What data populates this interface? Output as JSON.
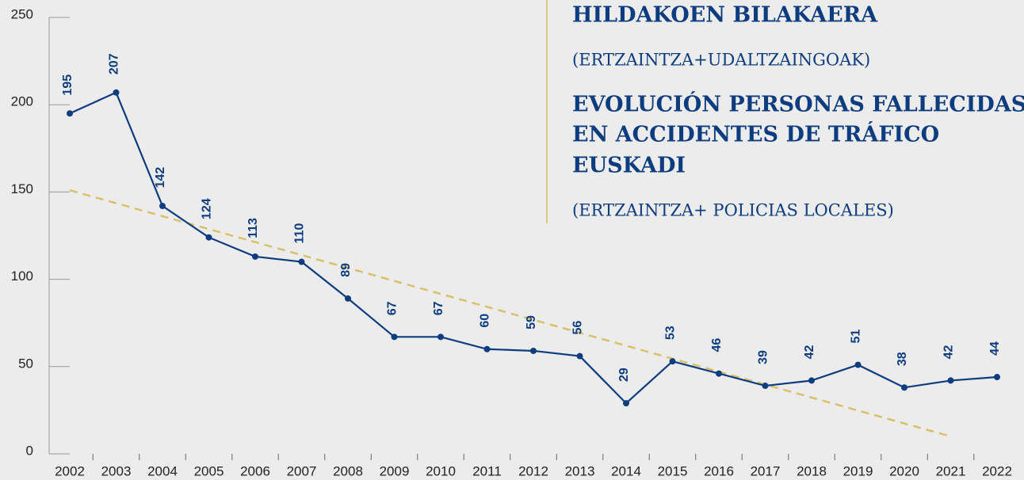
{
  "chart_data": {
    "type": "line",
    "title_lines": [
      "HILDAKOEN BILAKAERA",
      "(ERTZAINTZA+UDALTZAINGOAK)",
      "EVOLUCIÓN PERSONAS FALLECIDAS",
      "EN ACCIDENTES DE TRÁFICO",
      "EUSKADI",
      "(ERTZAINTZA+ POLICIAS LOCALES)"
    ],
    "categories": [
      "2002",
      "2003",
      "2004",
      "2005",
      "2006",
      "2007",
      "2008",
      "2009",
      "2010",
      "2011",
      "2012",
      "2013",
      "2014",
      "2015",
      "2016",
      "2017",
      "2018",
      "2019",
      "2020",
      "2021",
      "2022"
    ],
    "series": [
      {
        "color": "#0d3c7f",
        "values": [
          195,
          207,
          142,
          124,
          113,
          110,
          89,
          67,
          67,
          60,
          59,
          56,
          29,
          53,
          46,
          39,
          42,
          51,
          38,
          42,
          44
        ]
      }
    ],
    "trendline": {
      "color": "#d9c06a",
      "categories": [
        "2002",
        "2021"
      ],
      "values": [
        151,
        10
      ]
    },
    "ylim": [
      0,
      250
    ],
    "yticks": [
      0,
      50,
      100,
      150,
      200,
      250
    ]
  }
}
